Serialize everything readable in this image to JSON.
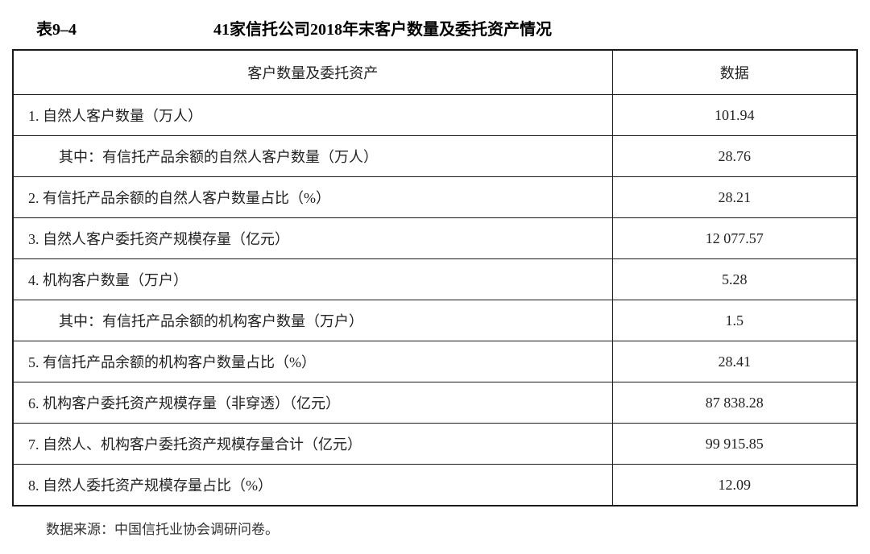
{
  "header": {
    "table_number": "表9–4",
    "title": "41家信托公司2018年末客户数量及委托资产情况"
  },
  "table": {
    "columns": [
      {
        "label": "客户数量及委托资产",
        "align": "center"
      },
      {
        "label": "数据",
        "align": "center"
      }
    ],
    "rows": [
      {
        "label": "1. 自然人客户数量（万人）",
        "value": "101.94",
        "indent": false
      },
      {
        "label": "其中：有信托产品余额的自然人客户数量（万人）",
        "value": "28.76",
        "indent": true
      },
      {
        "label": "2. 有信托产品余额的自然人客户数量占比（%）",
        "value": "28.21",
        "indent": false
      },
      {
        "label": "3. 自然人客户委托资产规模存量（亿元）",
        "value": "12 077.57",
        "indent": false
      },
      {
        "label": "4. 机构客户数量（万户）",
        "value": "5.28",
        "indent": false
      },
      {
        "label": "其中：有信托产品余额的机构客户数量（万户）",
        "value": "1.5",
        "indent": true
      },
      {
        "label": "5. 有信托产品余额的机构客户数量占比（%）",
        "value": "28.41",
        "indent": false
      },
      {
        "label": "6. 机构客户委托资产规模存量（非穿透）（亿元）",
        "value": "87 838.28",
        "indent": false
      },
      {
        "label": "7. 自然人、机构客户委托资产规模存量合计（亿元）",
        "value": "99 915.85",
        "indent": false
      },
      {
        "label": "8. 自然人委托资产规模存量占比（%）",
        "value": "12.09",
        "indent": false
      }
    ]
  },
  "footnote": "数据来源：中国信托业协会调研问卷。",
  "styling": {
    "border_color": "#1a1a1a",
    "text_color": "#222222",
    "background_color": "#ffffff",
    "title_fontsize": 20,
    "cell_fontsize": 18,
    "footnote_fontsize": 17,
    "col_widths": [
      "71%",
      "29%"
    ]
  }
}
